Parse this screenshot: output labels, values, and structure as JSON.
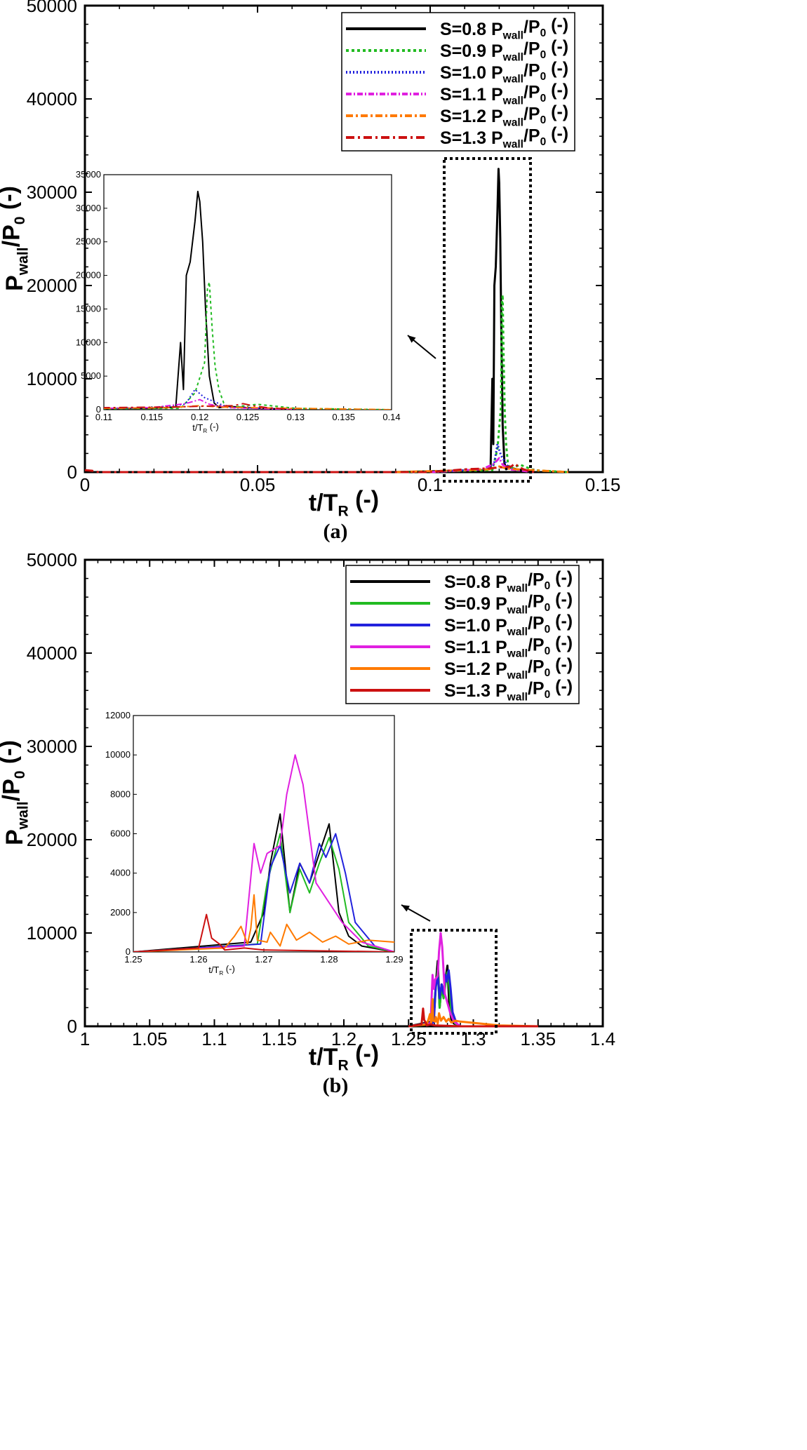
{
  "chart_data": [
    {
      "type": "line",
      "panel_label": "(a)",
      "xlabel": "t/T_R (-)",
      "ylabel": "P_wall/P_0 (-)",
      "xlim": [
        0,
        0.15
      ],
      "ylim": [
        0,
        50000
      ],
      "x_ticks": [
        "0",
        "0.05",
        "0.1",
        "0.15"
      ],
      "y_ticks": [
        "0",
        "10000",
        "20000",
        "30000",
        "40000",
        "50000"
      ],
      "legend": [
        "S=0.8 P_wall/P_0 (-)",
        "S=0.9 P_wall/P_0 (-)",
        "S=1.0 P_wall/P_0 (-)",
        "S=1.1 P_wall/P_0 (-)",
        "S=1.2 P_wall/P_0 (-)",
        "S=1.3 P_wall/P_0 (-)"
      ],
      "series": [
        {
          "name": "S=0.8",
          "color": "#000000",
          "dash": "",
          "x": [
            0.09,
            0.115,
            0.1175,
            0.118,
            0.1183,
            0.1186,
            0.119,
            0.1195,
            0.1198,
            0.12,
            0.1203,
            0.1206,
            0.121,
            0.1215,
            0.122,
            0.123,
            0.125,
            0.13
          ],
          "y": [
            0,
            200,
            400,
            10000,
            3000,
            20000,
            22000,
            28000,
            32500,
            31000,
            25000,
            15000,
            5000,
            1000,
            300,
            500,
            300,
            0
          ]
        },
        {
          "name": "S=0.9",
          "color": "#22bb22",
          "dash": "4,4",
          "x": [
            0.09,
            0.118,
            0.1195,
            0.1205,
            0.1208,
            0.121,
            0.1213,
            0.1216,
            0.122,
            0.1225,
            0.123,
            0.126,
            0.13,
            0.14
          ],
          "y": [
            0,
            200,
            2500,
            7000,
            18000,
            19000,
            12000,
            6500,
            3000,
            1000,
            300,
            800,
            200,
            0
          ]
        },
        {
          "name": "S=1.0",
          "color": "#2222dd",
          "dash": "2,3",
          "x": [
            0.1,
            0.115,
            0.1185,
            0.1195,
            0.1205,
            0.1215,
            0.123,
            0.126,
            0.13
          ],
          "y": [
            0,
            300,
            800,
            3000,
            1800,
            1200,
            300,
            200,
            0
          ]
        },
        {
          "name": "S=1.1",
          "color": "#e020e0",
          "dash": "8,3,2,3",
          "x": [
            0.1,
            0.115,
            0.1185,
            0.12,
            0.121,
            0.123,
            0.13
          ],
          "y": [
            0,
            300,
            900,
            1500,
            800,
            300,
            0
          ]
        },
        {
          "name": "S=1.2",
          "color": "#ff7a00",
          "dash": "10,4,3,4",
          "x": [
            0.09,
            0.11,
            0.117,
            0.12,
            0.122,
            0.125,
            0.13,
            0.14
          ],
          "y": [
            0,
            200,
            300,
            600,
            400,
            300,
            200,
            0
          ]
        },
        {
          "name": "S=1.3",
          "color": "#cc1111",
          "dash": "12,5,3,5",
          "x": [
            0.0,
            0.002,
            0.004,
            0.1,
            0.11,
            0.117,
            0.12,
            0.1235,
            0.1245,
            0.1255,
            0.127,
            0.13
          ],
          "y": [
            200,
            150,
            0,
            0,
            300,
            400,
            500,
            600,
            900,
            600,
            300,
            0
          ]
        }
      ],
      "inset": {
        "xlim": [
          0.11,
          0.14
        ],
        "ylim": [
          0,
          35000
        ],
        "xlabel": "t/T_R (-)",
        "x_ticks": [
          "0.11",
          "0.115",
          "0.12",
          "0.125",
          "0.13",
          "0.135",
          "0.14"
        ],
        "y_ticks": [
          "0",
          "5000",
          "10000",
          "15000",
          "20000",
          "25000",
          "30000",
          "35000"
        ]
      }
    },
    {
      "type": "line",
      "panel_label": "(b)",
      "xlabel": "t/T_R (-)",
      "ylabel": "P_wall/P_0 (-)",
      "xlim": [
        1,
        1.4
      ],
      "ylim": [
        0,
        50000
      ],
      "x_ticks": [
        "1",
        "1.05",
        "1.1",
        "1.15",
        "1.2",
        "1.25",
        "1.3",
        "1.35",
        "1.4"
      ],
      "y_ticks": [
        "0",
        "10000",
        "20000",
        "30000",
        "40000",
        "50000"
      ],
      "legend": [
        "S=0.8 P_wall/P_0 (-)",
        "S=0.9 P_wall/P_0 (-)",
        "S=1.0 P_wall/P_0 (-)",
        "S=1.1 P_wall/P_0 (-)",
        "S=1.2 P_wall/P_0 (-)",
        "S=1.3 P_wall/P_0 (-)"
      ],
      "series": [
        {
          "name": "S=0.8",
          "color": "#000000",
          "dash": "",
          "x": [
            1.25,
            1.268,
            1.27,
            1.271,
            1.2725,
            1.274,
            1.2755,
            1.277,
            1.2785,
            1.28,
            1.2815,
            1.283,
            1.285,
            1.29,
            1.32
          ],
          "y": [
            0,
            500,
            2000,
            4500,
            7000,
            2000,
            4500,
            3500,
            5000,
            6500,
            2000,
            800,
            300,
            0,
            0
          ]
        },
        {
          "name": "S=0.9",
          "color": "#22bb22",
          "dash": "",
          "x": [
            1.25,
            1.269,
            1.2705,
            1.2725,
            1.274,
            1.2755,
            1.277,
            1.2785,
            1.28,
            1.2815,
            1.283,
            1.286,
            1.29,
            1.32
          ],
          "y": [
            0,
            400,
            3500,
            6000,
            2000,
            4200,
            3000,
            4500,
            5800,
            4200,
            1500,
            300,
            0,
            0
          ]
        },
        {
          "name": "S=1.0",
          "color": "#2222dd",
          "dash": "",
          "x": [
            1.25,
            1.2695,
            1.271,
            1.2725,
            1.274,
            1.2755,
            1.277,
            1.2785,
            1.2795,
            1.281,
            1.2825,
            1.284,
            1.287,
            1.29,
            1.32
          ],
          "y": [
            0,
            400,
            4300,
            5400,
            3000,
            4500,
            3500,
            5500,
            4800,
            6000,
            4000,
            1500,
            300,
            0,
            0
          ]
        },
        {
          "name": "S=1.1",
          "color": "#e020e0",
          "dash": "",
          "x": [
            1.25,
            1.267,
            1.2685,
            1.2695,
            1.2705,
            1.2725,
            1.2735,
            1.2748,
            1.276,
            1.278,
            1.28,
            1.282,
            1.285,
            1.29,
            1.32
          ],
          "y": [
            0,
            300,
            5500,
            4000,
            5000,
            5400,
            8000,
            10000,
            8500,
            3500,
            2500,
            1500,
            500,
            0,
            0
          ]
        },
        {
          "name": "S=1.2",
          "color": "#ff7a00",
          "dash": "",
          "x": [
            1.25,
            1.264,
            1.2655,
            1.2665,
            1.2675,
            1.268,
            1.2685,
            1.269,
            1.2705,
            1.271,
            1.2725,
            1.2735,
            1.275,
            1.277,
            1.279,
            1.281,
            1.283,
            1.286,
            1.29,
            1.32,
            1.35
          ],
          "y": [
            0,
            200,
            800,
            1300,
            400,
            1200,
            2900,
            600,
            500,
            1000,
            300,
            1400,
            600,
            1000,
            500,
            800,
            400,
            600,
            500,
            100,
            0
          ]
        },
        {
          "name": "S=1.3",
          "color": "#cc1111",
          "dash": "",
          "x": [
            1.25,
            1.26,
            1.2612,
            1.262,
            1.2632,
            1.264,
            1.267,
            1.27,
            1.29,
            1.35
          ],
          "y": [
            0,
            200,
            1900,
            700,
            400,
            100,
            200,
            100,
            0,
            0
          ]
        }
      ],
      "inset": {
        "xlim": [
          1.25,
          1.29
        ],
        "ylim": [
          0,
          12000
        ],
        "xlabel": "t/T_R (-)",
        "x_ticks": [
          "1.25",
          "1.26",
          "1.27",
          "1.28",
          "1.29"
        ],
        "y_ticks": [
          "0",
          "2000",
          "4000",
          "6000",
          "8000",
          "10000",
          "12000"
        ]
      }
    }
  ]
}
